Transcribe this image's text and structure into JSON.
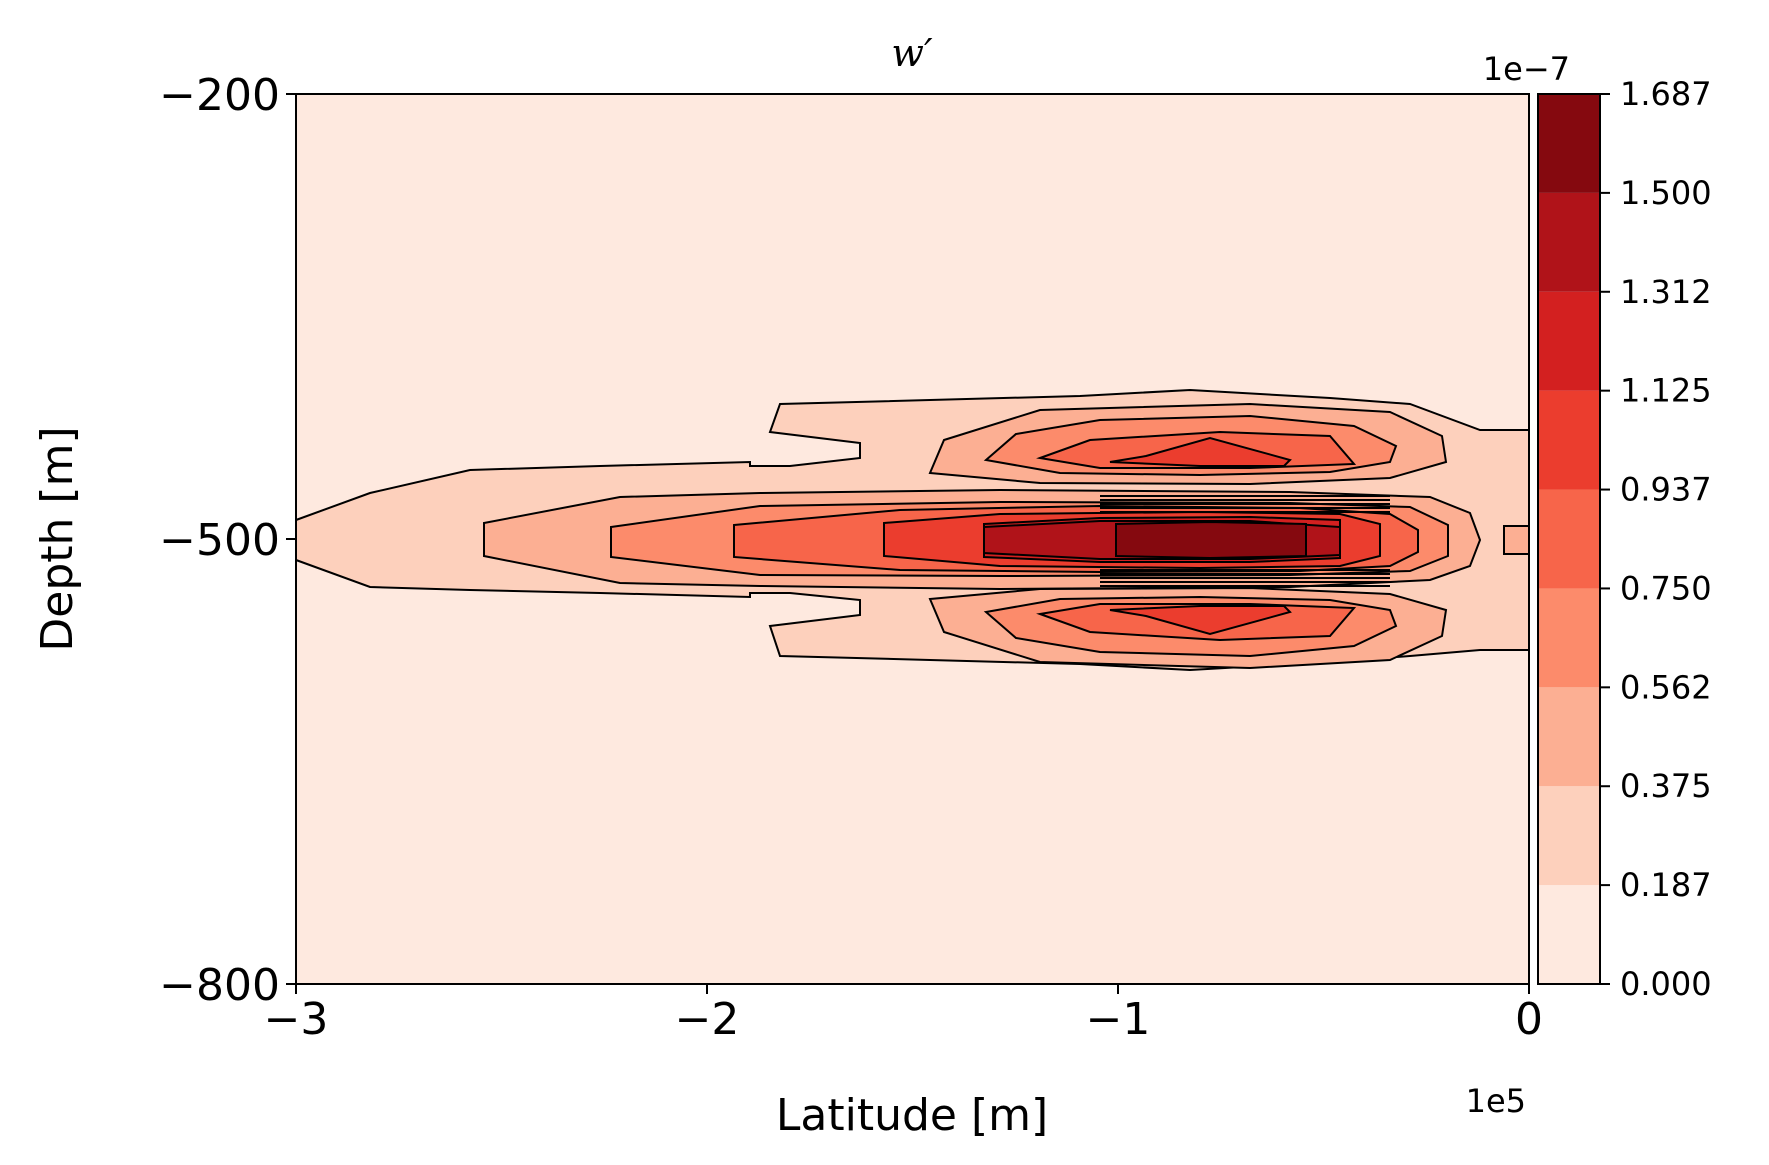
{
  "chart_data": {
    "type": "contour",
    "title": "w′",
    "xlabel": "Latitude [m]",
    "ylabel": "Depth [m]",
    "x_offset": "1e5",
    "xlim": [
      -300000,
      0
    ],
    "ylim": [
      -800,
      -200
    ],
    "x_ticks": [
      {
        "value": -300000,
        "label": "−3"
      },
      {
        "value": -200000,
        "label": "−2"
      },
      {
        "value": -100000,
        "label": "−1"
      },
      {
        "value": 0,
        "label": "0"
      }
    ],
    "y_ticks": [
      {
        "value": -800,
        "label": "−800"
      },
      {
        "value": -500,
        "label": "−500"
      },
      {
        "value": -200,
        "label": "−200"
      }
    ],
    "colorbar": {
      "offset": "1e−7",
      "colormap": "Reds",
      "levels": [
        0.0,
        0.1875,
        0.375,
        0.5625,
        0.75,
        0.9375,
        1.125,
        1.3125,
        1.5,
        1.6875
      ],
      "tick_labels": [
        "0.000",
        "0.187",
        "0.375",
        "0.562",
        "0.750",
        "0.937",
        "1.125",
        "1.312",
        "1.500",
        "1.687"
      ],
      "colors": [
        "#fee9df",
        "#fdd0bc",
        "#fcaf93",
        "#fc8b6b",
        "#f7654a",
        "#eb3d2e",
        "#d32020",
        "#b01319",
        "#85090f"
      ]
    },
    "features": [
      {
        "name": "central-jet",
        "center_x": -80000,
        "center_y": -500,
        "peak": 1.6875,
        "description_level_count": 9
      },
      {
        "name": "upper-lobe",
        "center_x": -80000,
        "center_y": -440,
        "peak": 1.125
      },
      {
        "name": "lower-lobe",
        "center_x": -80000,
        "center_y": -560,
        "peak": 1.125
      }
    ]
  }
}
